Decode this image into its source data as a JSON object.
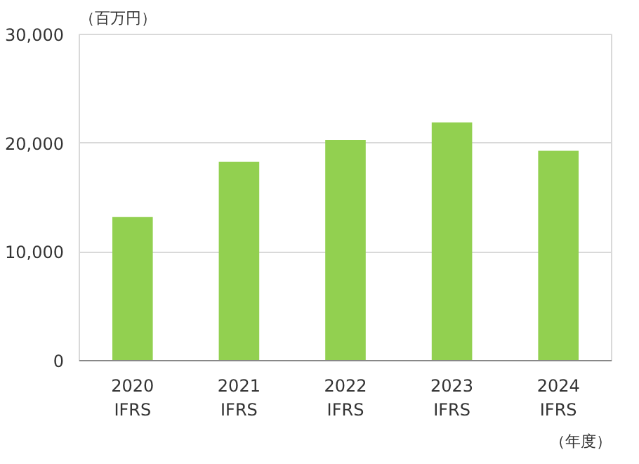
{
  "chart_data": {
    "type": "bar",
    "ylabel": "（百万円）",
    "xlabel": "（年度）",
    "categories": [
      "2020\nIFRS",
      "2021\nIFRS",
      "2022\nIFRS",
      "2023\nIFRS",
      "2024\nIFRS"
    ],
    "values": [
      13200,
      18300,
      20300,
      21900,
      19300
    ],
    "color": "#92d050",
    "ylim": [
      0,
      30000
    ],
    "yticks": [
      {
        "value": 0,
        "label": "0"
      },
      {
        "value": 10000,
        "label": "10,000"
      },
      {
        "value": 20000,
        "label": "20,000"
      },
      {
        "value": 30000,
        "label": "30,000"
      }
    ],
    "grid": "y"
  }
}
